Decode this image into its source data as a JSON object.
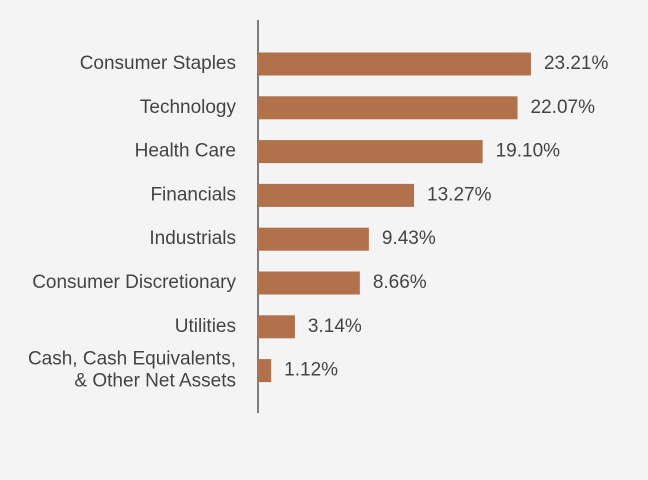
{
  "chart_data": {
    "type": "hbar",
    "categories": [
      "Consumer Staples",
      "Technology",
      "Health Care",
      "Financials",
      "Industrials",
      "Consumer Discretionary",
      "Utilities",
      "Cash, Cash Equivalents,\n& Other Net Assets"
    ],
    "values": [
      23.21,
      22.07,
      19.1,
      13.27,
      9.43,
      8.66,
      3.14,
      1.12
    ],
    "value_labels": [
      "23.21%",
      "22.07%",
      "19.10%",
      "13.27%",
      "9.43%",
      "8.66%",
      "3.14%",
      "1.12%"
    ],
    "color": "#b0714b"
  }
}
